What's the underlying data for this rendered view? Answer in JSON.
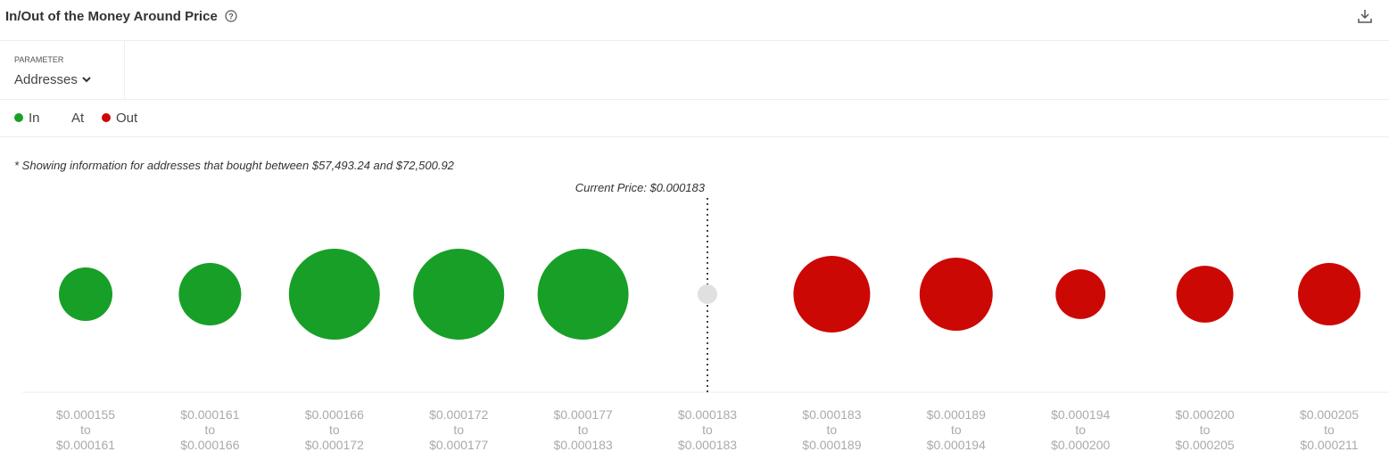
{
  "title": "In/Out of the Money Around Price",
  "parameter": {
    "label": "PARAMETER",
    "value": "Addresses"
  },
  "note": "* Showing information for addresses that bought between $57,493.24 and $72,500.92",
  "chart_data": {
    "type": "bubble",
    "annotation": "Current Price: $0.000183",
    "current_index": 5,
    "categories": [
      [
        "$0.000155",
        "to",
        "$0.000161"
      ],
      [
        "$0.000161",
        "to",
        "$0.000166"
      ],
      [
        "$0.000166",
        "to",
        "$0.000172"
      ],
      [
        "$0.000172",
        "to",
        "$0.000177"
      ],
      [
        "$0.000177",
        "to",
        "$0.000183"
      ],
      [
        "$0.000183",
        "to",
        "$0.000183"
      ],
      [
        "$0.000183",
        "to",
        "$0.000189"
      ],
      [
        "$0.000189",
        "to",
        "$0.000194"
      ],
      [
        "$0.000194",
        "to",
        "$0.000200"
      ],
      [
        "$0.000200",
        "to",
        "$0.000205"
      ],
      [
        "$0.000205",
        "to",
        "$0.000211"
      ]
    ],
    "series": [
      {
        "name": "In",
        "color": "#189f27",
        "values": [
          900,
          1225,
          2600,
          2600,
          2600,
          null,
          null,
          null,
          null,
          null,
          null
        ]
      },
      {
        "name": "At",
        "color": "#e0e0e0",
        "values": [
          null,
          null,
          null,
          null,
          null,
          121,
          null,
          null,
          null,
          null,
          null
        ]
      },
      {
        "name": "Out",
        "color": "#cc0805",
        "values": [
          null,
          null,
          null,
          null,
          null,
          null,
          1850,
          1680,
          780,
          1020,
          1225
        ]
      }
    ]
  }
}
